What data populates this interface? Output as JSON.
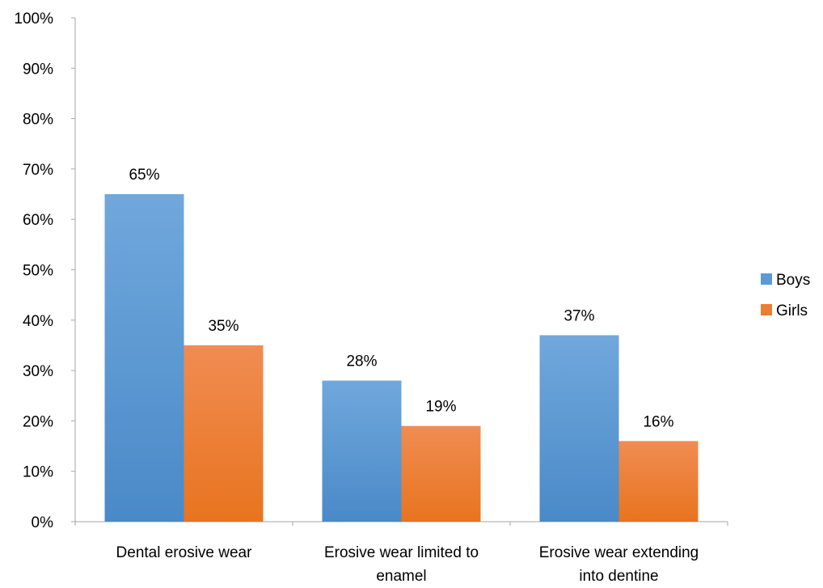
{
  "chart_data": {
    "type": "bar",
    "title": "",
    "xlabel": "",
    "ylabel": "",
    "categories": [
      [
        "Dental erosive wear"
      ],
      [
        "Erosive wear limited to",
        "enamel"
      ],
      [
        "Erosive wear extending",
        "into dentine"
      ]
    ],
    "series": [
      {
        "name": "Boys",
        "values": [
          65,
          28,
          37
        ],
        "color": "#5B9BD5",
        "color_dark": "#4A89C8",
        "color_light": "#70A8DC"
      },
      {
        "name": "Girls",
        "values": [
          35,
          19,
          16
        ],
        "color": "#ED7D31",
        "color_dark": "#E8741F",
        "color_light": "#F08C52"
      }
    ],
    "ylim": [
      0,
      100
    ],
    "yticks": [
      0,
      10,
      20,
      30,
      40,
      50,
      60,
      70,
      80,
      90,
      100
    ],
    "value_format": "percent",
    "grid": false,
    "legend_position": "right"
  }
}
